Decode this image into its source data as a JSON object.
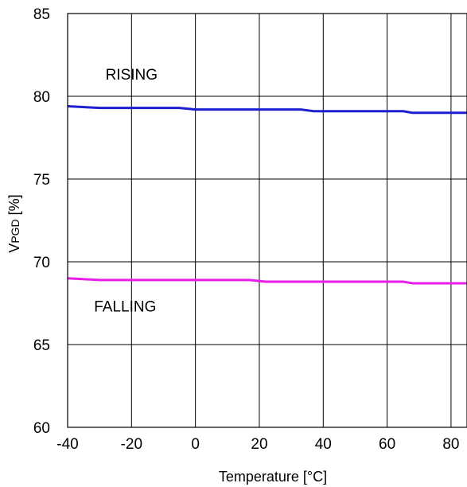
{
  "chart_data": {
    "type": "line",
    "xlabel": "Temperature [°C]",
    "ylabel_main": "V",
    "ylabel_sub": "PGD",
    "ylabel_unit": " [%]",
    "xlim": [
      -40,
      85
    ],
    "ylim": [
      60,
      85
    ],
    "x_ticks": [
      -40,
      -20,
      0,
      20,
      40,
      60,
      80
    ],
    "y_ticks": [
      60,
      65,
      70,
      75,
      80,
      85
    ],
    "grid": true,
    "legend": "none",
    "series": [
      {
        "name": "RISING",
        "color": "#1f1fd0",
        "x": [
          -40,
          -30,
          -5,
          0,
          33,
          37,
          65,
          68,
          85
        ],
        "y": [
          79.4,
          79.3,
          79.3,
          79.2,
          79.2,
          79.1,
          79.1,
          79.0,
          79.0
        ]
      },
      {
        "name": "FALLING",
        "color": "#e81ee8",
        "x": [
          -40,
          -30,
          17,
          22,
          65,
          68,
          85
        ],
        "y": [
          69.0,
          68.9,
          68.9,
          68.8,
          68.8,
          68.7,
          68.7
        ]
      }
    ],
    "annotations": [
      {
        "text": "RISING",
        "x": -20,
        "y": 81
      },
      {
        "text": "FALLING",
        "x": -22,
        "y": 67
      }
    ]
  }
}
